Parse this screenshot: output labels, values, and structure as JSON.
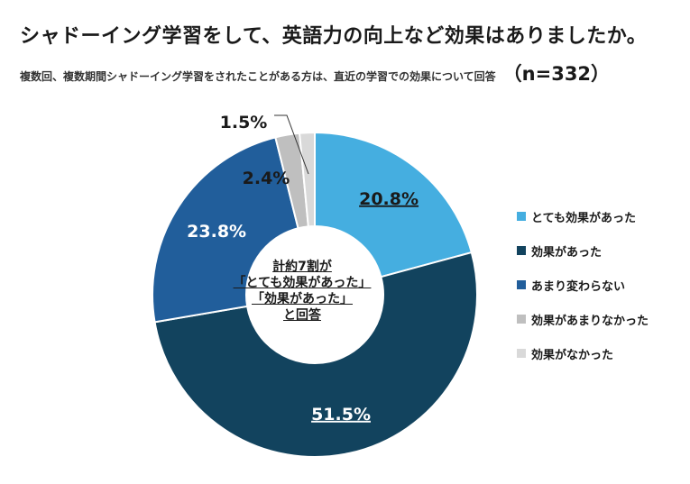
{
  "title": "シャドーイング学習をして、英語力の向上など効果はありましたか。",
  "subtitle": "複数回、複数期間シャドーイング学習をされたことがある方は、直近の学習での効果について回答",
  "n_label": "（n=332）",
  "center": {
    "line1": "計約7割が",
    "line2": "「とても効果があった」",
    "line3": "「効果があった」",
    "line4": "と回答"
  },
  "chart_data": {
    "type": "pie",
    "donut": true,
    "start_angle": "12 o'clock",
    "direction": "clockwise",
    "slices": [
      {
        "label": "とても効果があった",
        "value": 20.8,
        "display": "20.8%",
        "color": "#45aee0",
        "label_color": "#1a1a1a",
        "underline": true
      },
      {
        "label": "効果があった",
        "value": 51.5,
        "display": "51.5%",
        "color": "#12435e",
        "label_color": "#ffffff",
        "underline": true
      },
      {
        "label": "あまり変わらない",
        "value": 23.8,
        "display": "23.8%",
        "color": "#215e9b",
        "label_color": "#ffffff",
        "underline": false
      },
      {
        "label": "効果があまりなかった",
        "value": 2.4,
        "display": "2.4%",
        "color": "#bfbfbf",
        "label_color": "#1a1a1a",
        "underline": false
      },
      {
        "label": "効果がなかった",
        "value": 1.5,
        "display": "1.5%",
        "color": "#d9d9d9",
        "label_color": "#1a1a1a",
        "underline": false
      }
    ],
    "legend_position": "right"
  }
}
